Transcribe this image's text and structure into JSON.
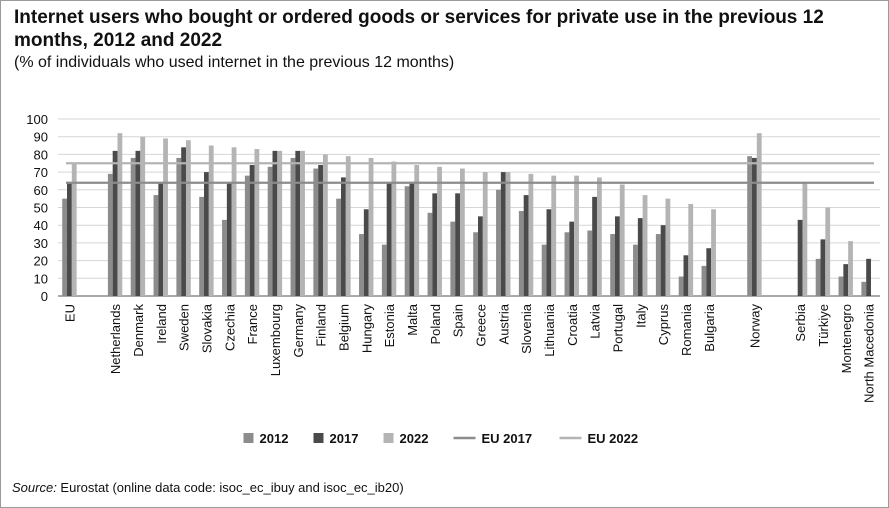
{
  "chart_data": {
    "type": "bar",
    "title": "Internet users who bought or ordered goods or services for private use in the previous 12 months, 2012 and 2022",
    "subtitle": "(% of individuals who used internet in the previous 12 months)",
    "ylim": [
      0,
      100
    ],
    "yticks": [
      "0",
      "10",
      "20",
      "30",
      "40",
      "50",
      "60",
      "70",
      "80",
      "90",
      "100"
    ],
    "grid": true,
    "legend_position": "bottom",
    "categories": [
      "EU",
      "",
      "Netherlands",
      "Denmark",
      "Ireland",
      "Sweden",
      "Slovakia",
      "Czechia",
      "France",
      "Luxembourg",
      "Germany",
      "Finland",
      "Belgium",
      "Hungary",
      "Estonia",
      "Malta",
      "Poland",
      "Spain",
      "Greece",
      "Austria",
      "Slovenia",
      "Lithuania",
      "Croatia",
      "Latvia",
      "Portugal",
      "Italy",
      "Cyprus",
      "Romania",
      "Bulgaria",
      "",
      "Norway",
      "",
      "Serbia",
      "Türkiye",
      "Montenegro",
      "North Macedonia"
    ],
    "series": [
      {
        "name": "2012",
        "color": "#8c8c8c",
        "values": [
          55,
          null,
          69,
          78,
          57,
          78,
          56,
          43,
          68,
          73,
          78,
          72,
          55,
          35,
          29,
          62,
          47,
          42,
          36,
          60,
          48,
          29,
          36,
          37,
          35,
          29,
          35,
          11,
          17,
          null,
          79,
          null,
          null,
          21,
          11,
          8
        ]
      },
      {
        "name": "2017",
        "color": "#4a4a4a",
        "values": [
          64,
          null,
          82,
          82,
          64,
          84,
          70,
          64,
          74,
          82,
          82,
          74,
          67,
          49,
          64,
          64,
          58,
          58,
          45,
          70,
          57,
          49,
          42,
          56,
          45,
          44,
          40,
          23,
          27,
          null,
          78,
          null,
          43,
          32,
          18,
          21
        ]
      },
      {
        "name": "2022",
        "color": "#b4b4b4",
        "values": [
          75,
          null,
          92,
          90,
          89,
          88,
          85,
          84,
          83,
          82,
          82,
          80,
          79,
          78,
          76,
          74,
          73,
          72,
          70,
          70,
          69,
          68,
          68,
          67,
          63,
          57,
          55,
          52,
          49,
          null,
          92,
          null,
          64,
          50,
          31,
          null
        ]
      }
    ],
    "reference_lines": [
      {
        "name": "EU 2017",
        "color": "#8c8c8c",
        "value": 64
      },
      {
        "name": "EU 2022",
        "color": "#b4b4b4",
        "value": 75
      }
    ]
  },
  "source": {
    "label": "Source:",
    "text": " Eurostat (online data code: isoc_ec_ibuy and isoc_ec_ib20)"
  }
}
